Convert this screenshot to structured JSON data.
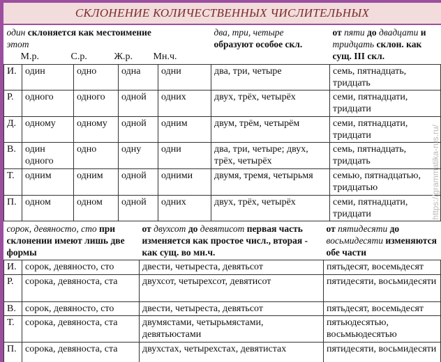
{
  "title": "СКЛОНЕНИЕ КОЛИЧЕСТВЕННЫХ ЧИСЛИТЕЛЬНЫХ",
  "top": {
    "h1": {
      "a": "один",
      "b": " склоняется  как местоимение ",
      "c": "этот"
    },
    "h2": {
      "a": "два, три,  четыре",
      "b": "образуют особое скл."
    },
    "h3": {
      "a": "от ",
      "b": "пяти",
      "c": " до ",
      "d": "двадцати",
      "e": " и ",
      "f": "тридцать",
      "g": " склон. как сущ. III скл."
    },
    "subheads": [
      "М.р.",
      "С.р.",
      "Ж.р.",
      "Мн.ч."
    ],
    "rows": [
      [
        "И.",
        "один",
        "одно",
        "одна",
        "одни",
        "два, три, четыре",
        "семь, пятнадцать, тридцать"
      ],
      [
        "Р.",
        "одного",
        "одного",
        "одной",
        "одних",
        "двух, трёх, четырёх",
        "семи, пятнадцати, тридцати"
      ],
      [
        "Д.",
        "одному",
        "одному",
        "одной",
        "одним",
        "двум, трём, четырём",
        "семи, пятнадцати, тридцати"
      ],
      [
        "В.",
        "один одного",
        "одно",
        "одну",
        "одни",
        "два, три, четыре; двух, трёх, четырёх",
        "семь, пятнадцать, тридцать"
      ],
      [
        "Т.",
        "одним",
        "одним",
        "одной",
        "одними",
        "двумя, тремя, четырьмя",
        "семью, пятнадцатью, тридцатью"
      ],
      [
        "П.",
        "одном",
        "одном",
        "одной",
        "одних",
        "двух, трёх, четырёх",
        "семи, пятнадцати, тридцати"
      ]
    ]
  },
  "bottom": {
    "h1": {
      "a": "сорок, девяносто, сто",
      "b": " при склонении имеют лишь две формы"
    },
    "h2": {
      "a": "от ",
      "b": "двухсот",
      "c": " до ",
      "d": "девятисот",
      "e": " первая часть изменяется как простое числ., вторая -  как сущ. во мн.ч."
    },
    "h3": {
      "a": "от ",
      "b": "пятидесяти",
      "c": " до ",
      "d": "восьмидесяти",
      "e": " изменяются обе части"
    },
    "rows": [
      [
        "И.",
        "сорок, девяносто, сто",
        "двести, четыреста, девятьсот",
        "пятьдесят, восемьдесят"
      ],
      [
        "Р.",
        "сорока, девяноста, ста",
        "двухсот, четырехсот, девятисот",
        "пятидесяти, восьмидесяти"
      ],
      [
        "В.",
        "сорок, девяносто, сто",
        "двести, четыреста, девятьсот",
        "пятьдесят, восемьдесят"
      ],
      [
        "Т.",
        "сорока, девяноста, ста",
        "двумястами, четырьмястами, девятьюстами",
        "пятьюдесятью, восьмьюдесятью"
      ],
      [
        "П.",
        "сорока, девяноста, ста",
        "двухстах, четырехстах, девятистах",
        "пятидесяти, восьмидесяти"
      ]
    ]
  },
  "watermark": "https://grammatika-rus.ru/",
  "colors": {
    "border": "#9b4f9e",
    "title_bg": "#f2dcdc",
    "title_text": "#7a2a2a"
  }
}
